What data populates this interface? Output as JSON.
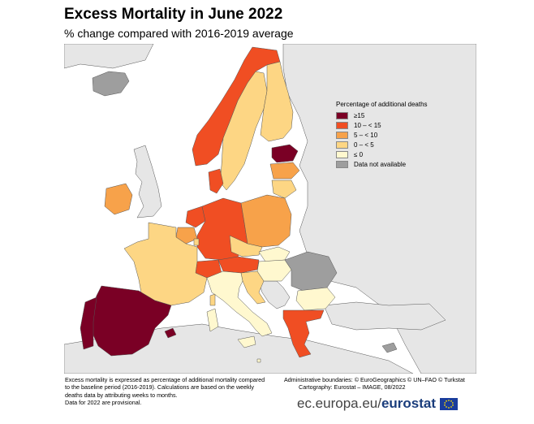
{
  "header": {
    "title": "Excess Mortality in June 2022",
    "subtitle": "% change compared with 2016-2019 average"
  },
  "legend": {
    "title": "Percentage of additional deaths",
    "items": [
      {
        "label": "≥15",
        "color": "#7a0025"
      },
      {
        "label": "10 – < 15",
        "color": "#f04e23"
      },
      {
        "label": "5 – < 10",
        "color": "#f7a24a"
      },
      {
        "label": "0 – < 5",
        "color": "#fdd684"
      },
      {
        "label": "≤ 0",
        "color": "#fff8cf"
      },
      {
        "label": "Data not available",
        "color": "#9e9e9e"
      }
    ]
  },
  "footnote": {
    "line1": "Excess mortality is expressed as percentage of additional mortality compared",
    "line2": "to the baseline period (2016-2019). Calculations are based on the weekly",
    "line3": "deaths data by attributing weeks to months.",
    "line4": "Data for 2022 are provisional."
  },
  "credits": {
    "line1": "Administrative boundaries: © EuroGeographics © UN–FAO © Turkstat",
    "line2": "Cartography: Eurostat – IMAGE, 08/2022"
  },
  "brand": {
    "domain": "ec.europa.eu/",
    "name": "eurostat"
  },
  "colors": {
    "sea": "#ffffff",
    "non_eu": "#e6e6e6",
    "border": "#555555"
  }
}
